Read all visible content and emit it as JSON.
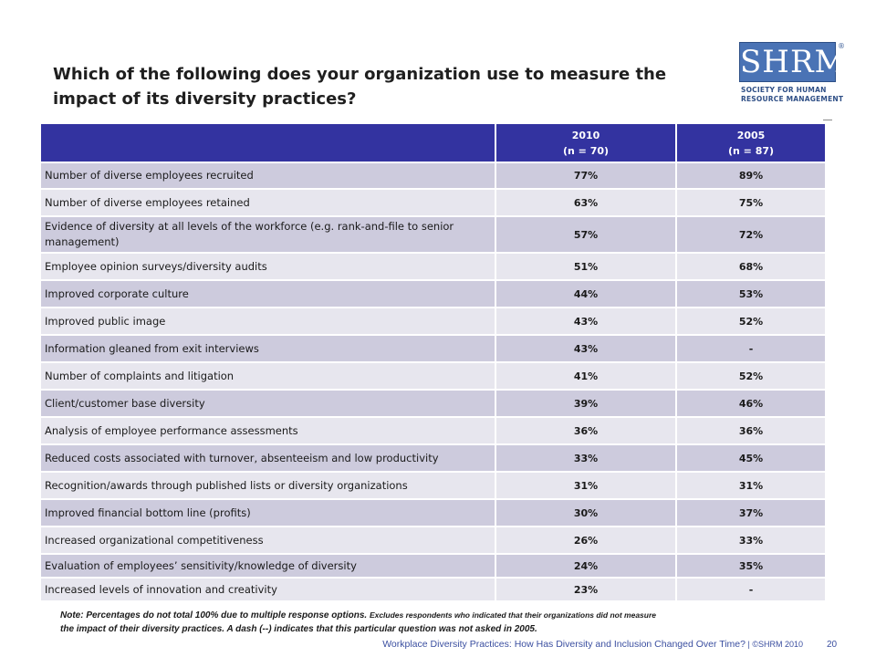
{
  "title": "Which of the following does your organization use to measure the impact of its diversity practices?",
  "logo": {
    "mark": "SHRM",
    "registered": "®",
    "lines": [
      "SOCIETY FOR HUMAN",
      "RESOURCE MANAGEMENT"
    ]
  },
  "table": {
    "columns": [
      {
        "year": "2010",
        "n": "(n = 70)"
      },
      {
        "year": "2005",
        "n": "(n = 87)"
      }
    ],
    "rows": [
      {
        "label": "Number of diverse employees recruited",
        "v2010": "77%",
        "v2005": "89%"
      },
      {
        "label": "Number of diverse employees retained",
        "v2010": "63%",
        "v2005": "75%"
      },
      {
        "label": "Evidence of diversity at all levels of the workforce (e.g. rank-and-file to senior management)",
        "v2010": "57%",
        "v2005": "72%"
      },
      {
        "label": "Employee opinion surveys/diversity audits",
        "v2010": "51%",
        "v2005": "68%"
      },
      {
        "label": "Improved corporate culture",
        "v2010": "44%",
        "v2005": "53%"
      },
      {
        "label": "Improved public image",
        "v2010": "43%",
        "v2005": "52%"
      },
      {
        "label": "Information gleaned from exit interviews",
        "v2010": "43%",
        "v2005": "-"
      },
      {
        "label": "Number of complaints and litigation",
        "v2010": "41%",
        "v2005": "52%"
      },
      {
        "label": "Client/customer base diversity",
        "v2010": "39%",
        "v2005": "46%"
      },
      {
        "label": "Analysis of employee performance assessments",
        "v2010": "36%",
        "v2005": "36%"
      },
      {
        "label": "Reduced costs associated with turnover, absenteeism and low productivity",
        "v2010": "33%",
        "v2005": "45%"
      },
      {
        "label": "Recognition/awards through published lists or diversity organizations",
        "v2010": "31%",
        "v2005": "31%"
      },
      {
        "label": "Improved financial bottom line (profits)",
        "v2010": "30%",
        "v2005": "37%"
      },
      {
        "label": "Increased organizational competitiveness",
        "v2010": "26%",
        "v2005": "33%"
      },
      {
        "label": "Evaluation of employees’ sensitivity/knowledge of diversity",
        "v2010": "24%",
        "v2005": "35%"
      },
      {
        "label": "Increased levels of innovation and creativity",
        "v2010": "23%",
        "v2005": "-"
      }
    ]
  },
  "note": {
    "part1": "Note: Percentages do not total 100% due to multiple response options. ",
    "part2": "Excludes respondents who indicated that their organizations did not measure",
    "part3": "the impact of their diversity practices. A dash (--) indicates that this particular question was not asked in 2005."
  },
  "footer": {
    "text": "Workplace Diversity Practices: How Has Diversity and Inclusion Changed Over Time?",
    "separator": " | ",
    "copyright": "©SHRM 2010",
    "page": "20"
  }
}
